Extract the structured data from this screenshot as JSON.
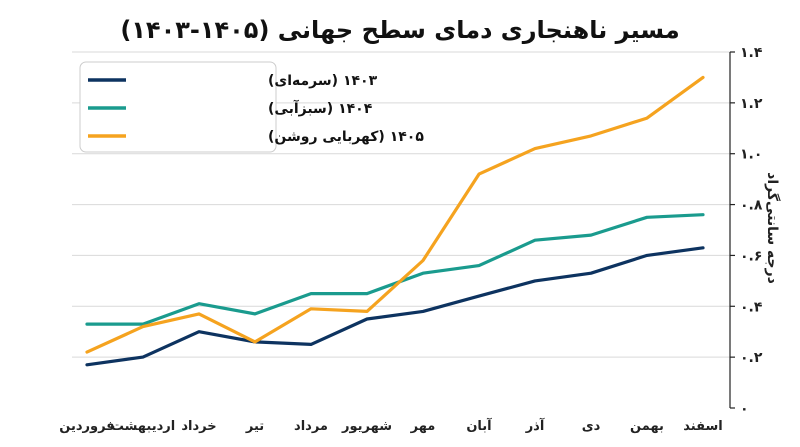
{
  "chart_data": {
    "type": "line",
    "title": "مسیر ناهنجاری دمای سطح جهانی (۱۴۰۵-۱۴۰۳)",
    "ylabel": "درجه سانتی‌گراد",
    "xlabel": "",
    "categories": [
      "فروردین",
      "اردیبهشت",
      "خرداد",
      "تیر",
      "مرداد",
      "شهریور",
      "مهر",
      "آبان",
      "آذر",
      "دی",
      "بهمن",
      "اسفند"
    ],
    "ylim": [
      0,
      1.4
    ],
    "yticks": [
      0,
      0.2,
      0.4,
      0.6,
      0.8,
      1.0,
      1.2,
      1.4
    ],
    "ytick_labels": [
      "۰",
      "۰.۲",
      "۰.۴",
      "۰.۶",
      "۰.۸",
      "۱.۰",
      "۱.۲",
      "۱.۴"
    ],
    "grid": "horizontal",
    "legend_position": "top-left",
    "series": [
      {
        "name": "۱۴۰۳ (سرمه‌ای)",
        "color": "#0d3360",
        "values": [
          0.17,
          0.2,
          0.3,
          0.26,
          0.25,
          0.35,
          0.38,
          0.44,
          0.5,
          0.53,
          0.6,
          0.63
        ]
      },
      {
        "name": "۱۴۰۴ (سبزآبی)",
        "color": "#1a9b8e",
        "values": [
          0.33,
          0.33,
          0.41,
          0.37,
          0.45,
          0.45,
          0.53,
          0.56,
          0.66,
          0.68,
          0.75,
          0.76
        ]
      },
      {
        "name": "۱۴۰۵ (کهربایی روشن)",
        "color": "#f5a31f",
        "values": [
          0.22,
          0.32,
          0.37,
          0.26,
          0.39,
          0.38,
          0.58,
          0.92,
          1.02,
          1.07,
          1.14,
          1.3
        ]
      }
    ]
  }
}
